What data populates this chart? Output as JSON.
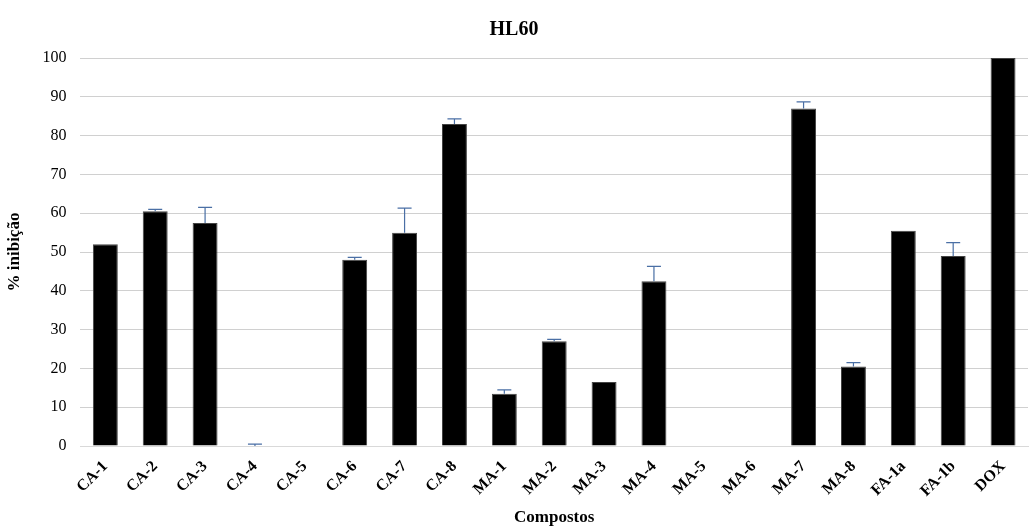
{
  "chart_data": {
    "type": "bar",
    "title": "HL60",
    "xlabel": "Compostos",
    "ylabel": "% inibição",
    "categories": [
      "CA-1",
      "CA-2",
      "CA-3",
      "CA-4",
      "CA-5",
      "CA-6",
      "CA-7",
      "CA-8",
      "MA-1",
      "MA-2",
      "MA-3",
      "MA-4",
      "MA-5",
      "MA-6",
      "MA-7",
      "MA-8",
      "FA-1a",
      "FA-1b",
      "DOX"
    ],
    "values": [
      52,
      60.5,
      57.5,
      0,
      0,
      48,
      55,
      83,
      13.5,
      27,
      16.5,
      42.5,
      0,
      0,
      87,
      20.5,
      55.5,
      49,
      100
    ],
    "errors": [
      null,
      [
        60.5,
        61
      ],
      [
        57.5,
        61.5
      ],
      [
        0,
        0.5
      ],
      null,
      [
        48,
        48.6
      ],
      [
        55,
        61.3
      ],
      [
        83,
        84.3
      ],
      [
        13.5,
        14.5
      ],
      [
        27,
        27.5
      ],
      null,
      [
        42.5,
        46.3
      ],
      null,
      null,
      [
        87,
        88.7
      ],
      [
        20.5,
        21.5
      ],
      null,
      [
        49,
        52.4
      ],
      null
    ],
    "color": "#000000",
    "ylim": [
      0,
      100
    ],
    "yticks": [
      0,
      10,
      20,
      30,
      40,
      50,
      60,
      70,
      80,
      90,
      100
    ],
    "grid": "y",
    "legend": false
  }
}
